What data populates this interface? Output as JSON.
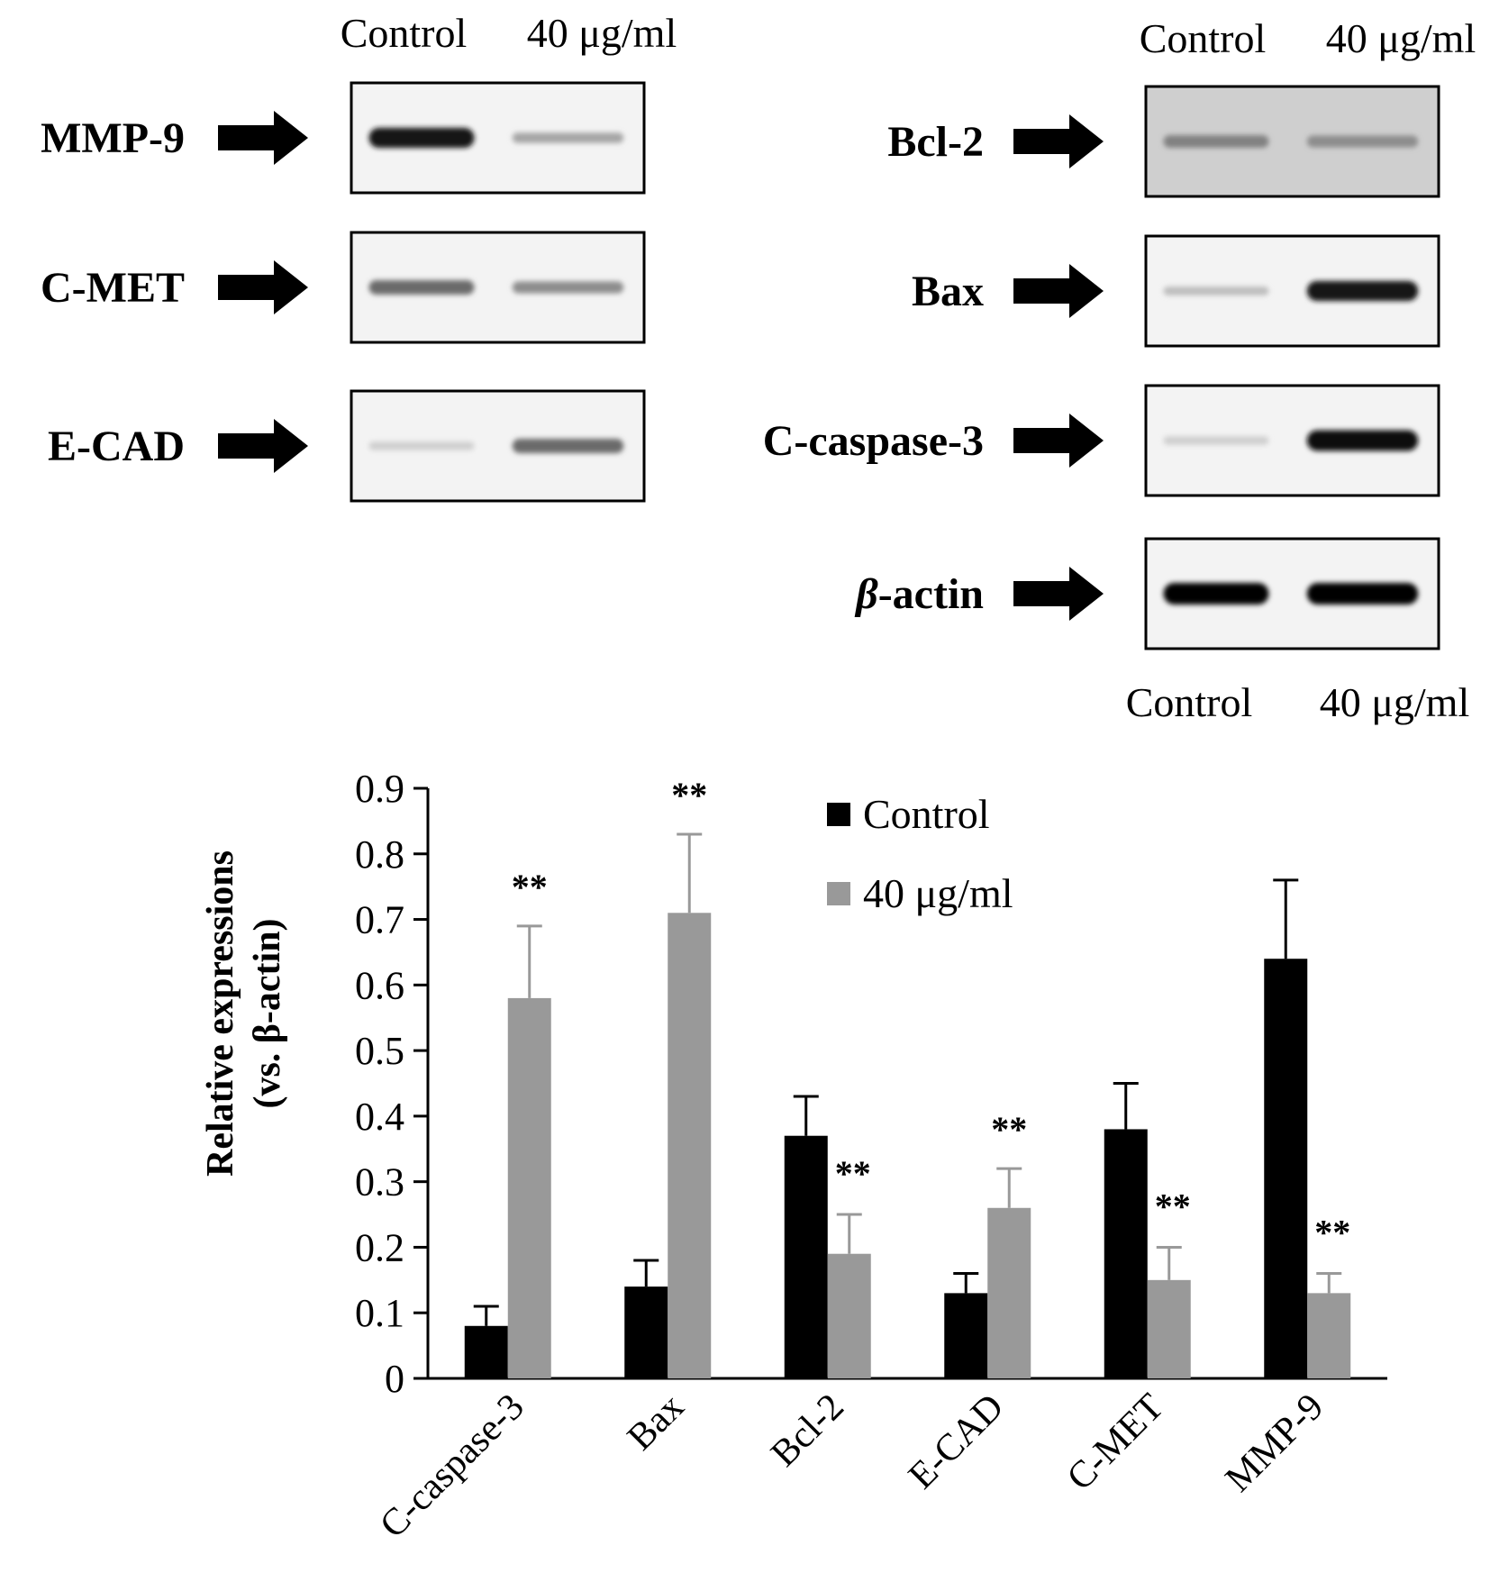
{
  "blots": {
    "lane_labels": {
      "control": "Control",
      "treated": "40 μg/ml"
    },
    "left": [
      {
        "label": "MMP-9",
        "control_intensity": 0.9,
        "treated_intensity": 0.3
      },
      {
        "label": "C-MET",
        "control_intensity": 0.55,
        "treated_intensity": 0.4
      },
      {
        "label": "E-CAD",
        "control_intensity": 0.12,
        "treated_intensity": 0.55
      }
    ],
    "right": [
      {
        "label": "Bcl-2",
        "control_intensity": 0.45,
        "treated_intensity": 0.4
      },
      {
        "label": "Bax",
        "control_intensity": 0.2,
        "treated_intensity": 0.9
      },
      {
        "label": "C-caspase-3",
        "control_intensity": 0.12,
        "treated_intensity": 0.95
      },
      {
        "label": "β-actin",
        "control_intensity": 1.0,
        "treated_intensity": 1.0
      }
    ]
  },
  "chart_data": {
    "type": "bar",
    "categories": [
      "C-caspase-3",
      "Bax",
      "Bcl-2",
      "E-CAD",
      "C-MET",
      "MMP-9"
    ],
    "series": [
      {
        "name": "Control",
        "values": [
          0.08,
          0.14,
          0.37,
          0.13,
          0.38,
          0.64
        ],
        "errors": [
          0.03,
          0.04,
          0.06,
          0.03,
          0.07,
          0.12
        ],
        "color": "#000000"
      },
      {
        "name": "40 μg/ml",
        "values": [
          0.58,
          0.71,
          0.19,
          0.26,
          0.15,
          0.13
        ],
        "errors": [
          0.11,
          0.12,
          0.06,
          0.06,
          0.05,
          0.03
        ],
        "color": "#999999"
      }
    ],
    "significance": [
      {
        "category": "C-caspase-3",
        "series": "40 μg/ml",
        "mark": "**"
      },
      {
        "category": "Bax",
        "series": "40 μg/ml",
        "mark": "**"
      },
      {
        "category": "Bcl-2",
        "series": "40 μg/ml",
        "mark": "**"
      },
      {
        "category": "E-CAD",
        "series": "40 μg/ml",
        "mark": "**"
      },
      {
        "category": "C-MET",
        "series": "40 μg/ml",
        "mark": "**"
      },
      {
        "category": "MMP-9",
        "series": "40 μg/ml",
        "mark": "**"
      }
    ],
    "ylabel_line1": "Relative expressions",
    "ylabel_line2": "(vs. β-actin)",
    "xlabel": "",
    "ylim": [
      0,
      0.9
    ],
    "yticks": [
      "0",
      "0.1",
      "0.2",
      "0.3",
      "0.4",
      "0.5",
      "0.6",
      "0.7",
      "0.8",
      "0.9"
    ],
    "legend_position": "top-right",
    "grid": false
  }
}
